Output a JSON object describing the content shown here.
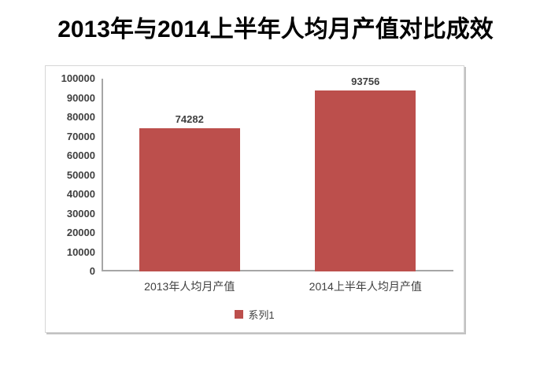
{
  "title": "2013年与2014上半年人均月产值对比成效",
  "chart_data": {
    "type": "bar",
    "title": "2013年与2014上半年人均月产值对比成效",
    "categories": [
      "2013年人均月产值",
      "2014上半年人均月产值"
    ],
    "series": [
      {
        "name": "系列1",
        "values": [
          74282,
          93756
        ]
      }
    ],
    "value_labels": [
      "74282",
      "93756"
    ],
    "xlabel": "",
    "ylabel": "",
    "ylim": [
      0,
      100000
    ],
    "yticks": [
      0,
      10000,
      20000,
      30000,
      40000,
      50000,
      60000,
      70000,
      80000,
      90000,
      100000
    ],
    "grid": false,
    "legend_position": "bottom",
    "bar_color": "#bc4f4c",
    "axis_line_color": "#a6a6a6",
    "label_color": "#3f3f3f"
  }
}
